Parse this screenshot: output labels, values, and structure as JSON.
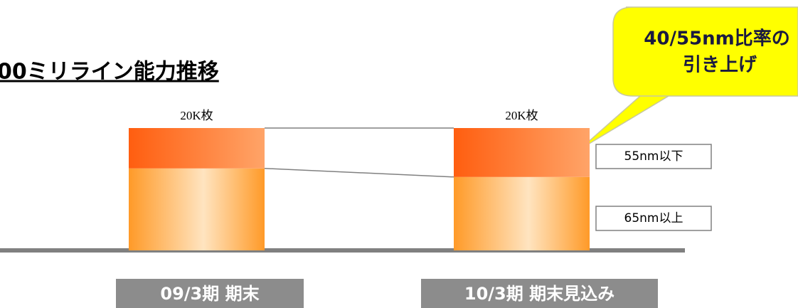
{
  "chart_data": {
    "type": "stacked_bar",
    "title": "00ミリライン能力推移",
    "categories": [
      "09/3期 期末",
      "10/3期 期末見込み"
    ],
    "series": [
      {
        "name": "65nm以上",
        "color": "#ffb060",
        "values": [
          13.4,
          12
        ]
      },
      {
        "name": "55nm以下",
        "color": "#ff7a30",
        "values": [
          6.6,
          8
        ]
      }
    ],
    "totals": {
      "values": [
        20,
        20
      ],
      "value_labels": [
        "20K枚",
        "20K枚"
      ]
    },
    "annotation": [
      "40/55nm比率の",
      "引き上げ"
    ]
  }
}
